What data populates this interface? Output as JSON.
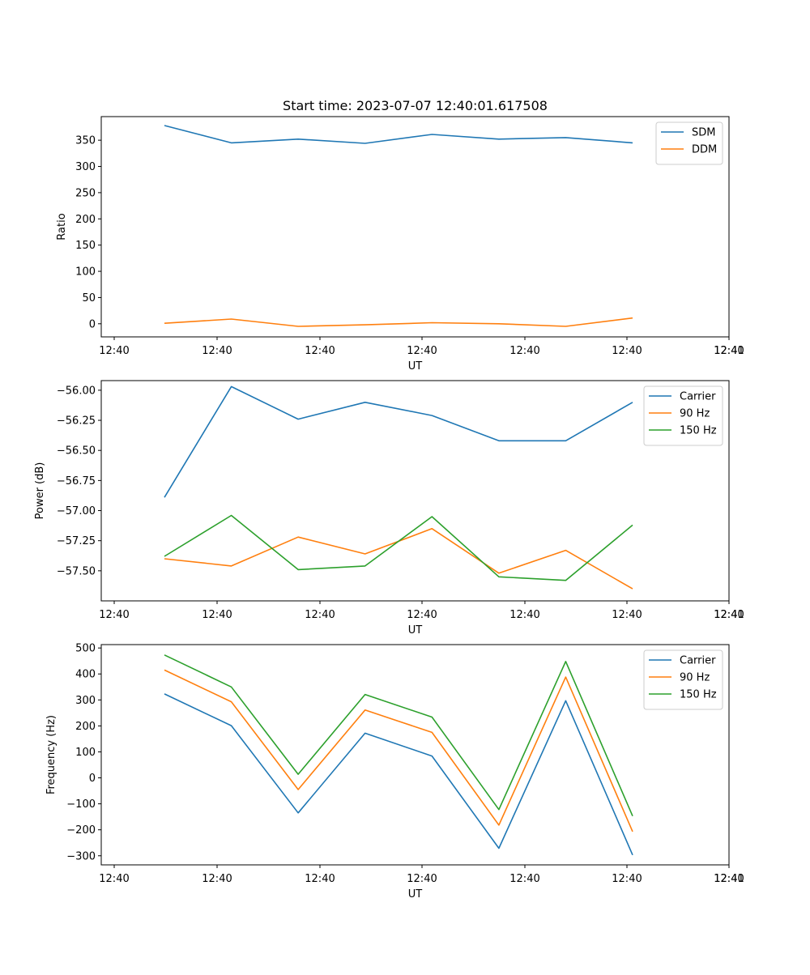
{
  "title": "Start time: 2023-07-07 12:40:01.617508",
  "chart_data": [
    {
      "type": "line",
      "xlabel": "UT",
      "ylabel": "Ratio",
      "x_tick_labels": [
        "12:40",
        "12:40",
        "12:40",
        "12:40",
        "12:40",
        "12:40",
        "12:40",
        "12:41"
      ],
      "xlim": [
        -0.2,
        9.0
      ],
      "ylim": [
        -25,
        395
      ],
      "y_ticks": [
        0,
        50,
        100,
        150,
        200,
        250,
        300,
        350
      ],
      "y_tick_labels": [
        "0",
        "50",
        "100",
        "150",
        "200",
        "250",
        "300",
        "350"
      ],
      "legend_position": "top-right",
      "x": [
        0,
        1,
        2,
        3,
        4,
        5,
        6,
        7
      ],
      "series": [
        {
          "name": "SDM",
          "color": "#1f77b4",
          "values": [
            378,
            345,
            352,
            344,
            361,
            352,
            355,
            345
          ]
        },
        {
          "name": "DDM",
          "color": "#ff7f0e",
          "values": [
            1,
            9,
            -5,
            -2,
            2,
            0,
            -5,
            11
          ]
        }
      ]
    },
    {
      "type": "line",
      "xlabel": "UT",
      "ylabel": "Power (dB)",
      "x_tick_labels": [
        "12:40",
        "12:40",
        "12:40",
        "12:40",
        "12:40",
        "12:40",
        "12:40",
        "12:41"
      ],
      "xlim": [
        -0.2,
        9.0
      ],
      "ylim": [
        -57.75,
        -55.92
      ],
      "y_ticks": [
        -57.5,
        -57.25,
        -57.0,
        -56.75,
        -56.5,
        -56.25,
        -56.0
      ],
      "y_tick_labels": [
        "−57.50",
        "−57.25",
        "−57.00",
        "−56.75",
        "−56.50",
        "−56.25",
        "−56.00"
      ],
      "legend_position": "top-right",
      "x": [
        0,
        1,
        2,
        3,
        4,
        5,
        6,
        7
      ],
      "series": [
        {
          "name": "Carrier",
          "color": "#1f77b4",
          "values": [
            -56.89,
            -55.97,
            -56.24,
            -56.1,
            -56.21,
            -56.42,
            -56.42,
            -56.1
          ]
        },
        {
          "name": "90 Hz",
          "color": "#ff7f0e",
          "values": [
            -57.4,
            -57.46,
            -57.22,
            -57.36,
            -57.15,
            -57.52,
            -57.33,
            -57.65
          ]
        },
        {
          "name": "150 Hz",
          "color": "#2ca02c",
          "values": [
            -57.38,
            -57.04,
            -57.49,
            -57.46,
            -57.05,
            -57.55,
            -57.58,
            -57.12
          ]
        }
      ]
    },
    {
      "type": "line",
      "xlabel": "UT",
      "ylabel": "Frequency (Hz)",
      "x_tick_labels": [
        "12:40",
        "12:40",
        "12:40",
        "12:40",
        "12:40",
        "12:40",
        "12:40",
        "12:41"
      ],
      "xlim": [
        -0.2,
        9.0
      ],
      "ylim": [
        -335,
        513
      ],
      "y_ticks": [
        -300,
        -200,
        -100,
        0,
        100,
        200,
        300,
        400,
        500
      ],
      "y_tick_labels": [
        "−300",
        "−200",
        "−100",
        "0",
        "100",
        "200",
        "300",
        "400",
        "500"
      ],
      "legend_position": "top-right",
      "x": [
        0,
        1,
        2,
        3,
        4,
        5,
        6,
        7
      ],
      "series": [
        {
          "name": "Carrier",
          "color": "#1f77b4",
          "values": [
            323,
            201,
            -135,
            172,
            84,
            -271,
            297,
            -297
          ]
        },
        {
          "name": "90 Hz",
          "color": "#ff7f0e",
          "values": [
            415,
            293,
            -45,
            261,
            175,
            -182,
            388,
            -207
          ]
        },
        {
          "name": "150 Hz",
          "color": "#2ca02c",
          "values": [
            473,
            350,
            14,
            321,
            234,
            -122,
            448,
            -147
          ]
        }
      ]
    }
  ]
}
